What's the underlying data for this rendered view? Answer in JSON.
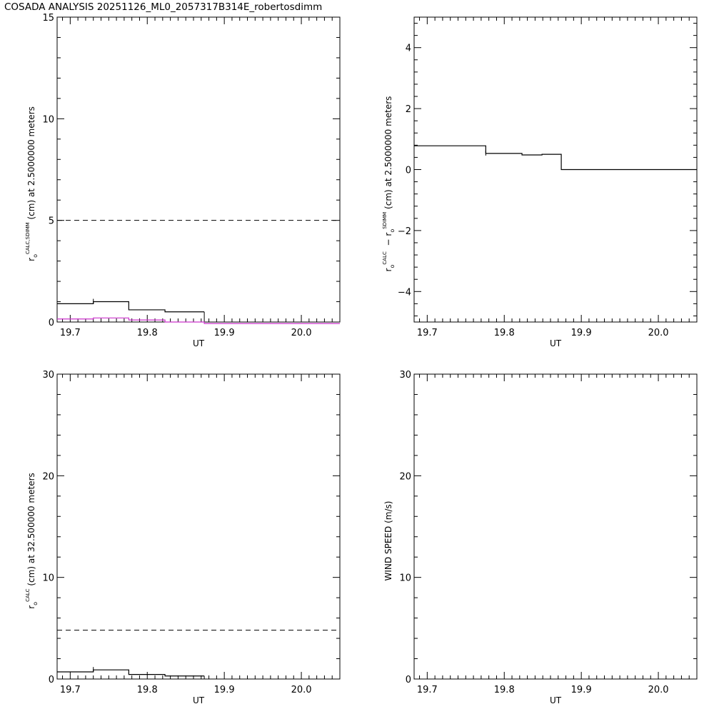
{
  "title": "COSADA ANALYSIS 20251126_ML0_2057317B314E_robertosdimm",
  "colors": {
    "axis": "#000000",
    "series_main": "#000000",
    "series_alt": "#cc33cc"
  },
  "chart_data": [
    {
      "id": "p1",
      "type": "line",
      "step": true,
      "xlabel": "UT",
      "ylabel_parts": {
        "sym": "r",
        "sub": "o",
        "sup": "CALC,SDIMM",
        "rest": "(cm)  at  2.5000000 meters"
      },
      "xlim": [
        19.683,
        20.05
      ],
      "ylim": [
        0,
        15
      ],
      "xticks": [
        19.7,
        19.8,
        19.9,
        20.0
      ],
      "xtick_labels": [
        "19.7",
        "19.8",
        "19.9",
        "20.0"
      ],
      "yticks": [
        0,
        5,
        10,
        15
      ],
      "ytick_labels": [
        "0",
        "5",
        "10",
        "15"
      ],
      "hlines": [
        {
          "y": 5.0,
          "dash": true
        }
      ],
      "series": [
        {
          "color_key": "series_main",
          "x": [
            19.683,
            19.73,
            19.776,
            19.823,
            19.874
          ],
          "y": [
            0.9,
            1.0,
            0.6,
            0.5,
            0.5
          ],
          "end_x": 19.874
        },
        {
          "color_key": "series_alt",
          "x": [
            19.683,
            19.73,
            19.776,
            19.823,
            19.874
          ],
          "y": [
            0.15,
            0.2,
            0.1,
            0.0,
            -0.1
          ],
          "end_x": 20.05
        }
      ]
    },
    {
      "id": "p2",
      "type": "line",
      "step": true,
      "xlabel": "UT",
      "ylabel_parts": {
        "sym": "r",
        "sub": "o",
        "sup": "CALC",
        "mid": " − r",
        "sub2": "o",
        "sup2": "SDIMM",
        "rest": "(cm)  at  2.5000000 meters"
      },
      "xlim": [
        19.683,
        20.05
      ],
      "ylim": [
        -5,
        5
      ],
      "xticks": [
        19.7,
        19.8,
        19.9,
        20.0
      ],
      "xtick_labels": [
        "19.7",
        "19.8",
        "19.9",
        "20.0"
      ],
      "yticks": [
        -4,
        -2,
        0,
        2,
        4
      ],
      "ytick_labels": [
        "−4",
        "−2",
        "0",
        "2",
        "4"
      ],
      "hlines": [],
      "series": [
        {
          "color_key": "series_main",
          "x": [
            19.683,
            19.776,
            19.823,
            19.849,
            19.874
          ],
          "y": [
            0.78,
            0.53,
            0.48,
            0.5,
            0.0
          ],
          "end_x": 20.05
        }
      ]
    },
    {
      "id": "p3",
      "type": "line",
      "step": true,
      "xlabel": "UT",
      "ylabel_parts": {
        "sym": "r",
        "sub": "o",
        "sup": "CALC",
        "rest": "(cm) at 32.500000 meters"
      },
      "xlim": [
        19.683,
        20.05
      ],
      "ylim": [
        0,
        30
      ],
      "xticks": [
        19.7,
        19.8,
        19.9,
        20.0
      ],
      "xtick_labels": [
        "19.7",
        "19.8",
        "19.9",
        "20.0"
      ],
      "yticks": [
        0,
        10,
        20,
        30
      ],
      "ytick_labels": [
        "0",
        "10",
        "20",
        "30"
      ],
      "hlines": [
        {
          "y": 4.8,
          "dash": true
        }
      ],
      "series": [
        {
          "color_key": "series_main",
          "x": [
            19.683,
            19.73,
            19.776,
            19.823,
            19.874
          ],
          "y": [
            0.7,
            0.9,
            0.45,
            0.3,
            0.3
          ],
          "end_x": 19.874
        }
      ]
    },
    {
      "id": "p4",
      "type": "line",
      "step": true,
      "xlabel": "UT",
      "ylabel_parts": {
        "rest": "WIND SPEED (m/s)"
      },
      "xlim": [
        19.683,
        20.05
      ],
      "ylim": [
        0,
        30
      ],
      "xticks": [
        19.7,
        19.8,
        19.9,
        20.0
      ],
      "xtick_labels": [
        "19.7",
        "19.8",
        "19.9",
        "20.0"
      ],
      "yticks": [
        0,
        10,
        20,
        30
      ],
      "ytick_labels": [
        "0",
        "10",
        "20",
        "30"
      ],
      "hlines": [],
      "series": []
    }
  ]
}
